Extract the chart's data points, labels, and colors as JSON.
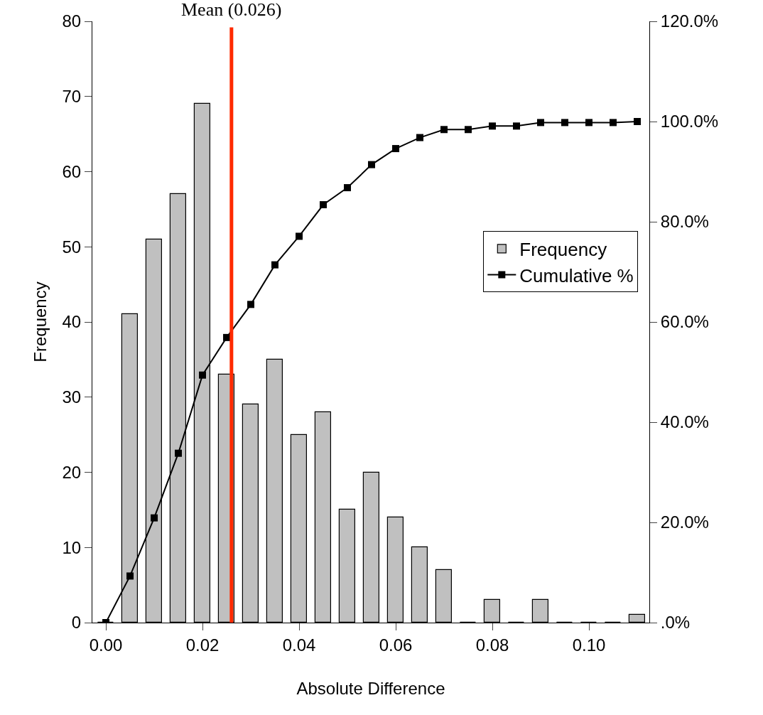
{
  "chart_data": {
    "type": "bar",
    "xlabel": "Absolute Difference",
    "ylabel": "Frequency",
    "x": [
      0.0,
      0.005,
      0.01,
      0.015,
      0.02,
      0.025,
      0.03,
      0.035,
      0.04,
      0.045,
      0.05,
      0.055,
      0.06,
      0.065,
      0.07,
      0.075,
      0.08,
      0.085,
      0.09,
      0.095,
      0.1,
      0.105,
      0.11
    ],
    "series": [
      {
        "name": "Frequency",
        "color": "#c0c0c0",
        "values": [
          0,
          41,
          51,
          57,
          69,
          33,
          29,
          35,
          25,
          28,
          15,
          20,
          14,
          10,
          7,
          0,
          3,
          0,
          3,
          0,
          0,
          0,
          1
        ]
      },
      {
        "name": "Cumulative %",
        "type": "line",
        "axis": "y2",
        "color": "#000000",
        "values": [
          0,
          9.3,
          20.9,
          33.8,
          49.4,
          56.9,
          63.5,
          71.4,
          77.1,
          83.4,
          86.8,
          91.4,
          94.6,
          96.8,
          98.4,
          98.4,
          99.1,
          99.1,
          99.8,
          99.8,
          99.8,
          99.8,
          100
        ]
      }
    ],
    "xlim": [
      -0.0028,
      0.1125
    ],
    "xticks": [
      {
        "value": 0.0,
        "label": "0.00"
      },
      {
        "value": 0.02,
        "label": "0.02"
      },
      {
        "value": 0.04,
        "label": "0.04"
      },
      {
        "value": 0.06,
        "label": "0.06"
      },
      {
        "value": 0.08,
        "label": "0.08"
      },
      {
        "value": 0.1,
        "label": "0.10"
      }
    ],
    "ylim": [
      0,
      80
    ],
    "yticks": [
      0,
      10,
      20,
      30,
      40,
      50,
      60,
      70,
      80
    ],
    "y2lim": [
      0,
      120
    ],
    "y2ticks": [
      {
        "value": 0,
        "label": ".0%"
      },
      {
        "value": 20,
        "label": "20.0%"
      },
      {
        "value": 40,
        "label": "40.0%"
      },
      {
        "value": 60,
        "label": "60.0%"
      },
      {
        "value": 80,
        "label": "80.0%"
      },
      {
        "value": 100,
        "label": "100.0%"
      },
      {
        "value": 120,
        "label": "120.0%"
      }
    ],
    "ref_lines": [
      {
        "axis": "x",
        "value": 0.026,
        "label": "Mean (0.026)",
        "color": "#ff2a00",
        "line_style": "solid"
      }
    ],
    "marker": "square",
    "line_style": "solid",
    "legend": "right"
  }
}
